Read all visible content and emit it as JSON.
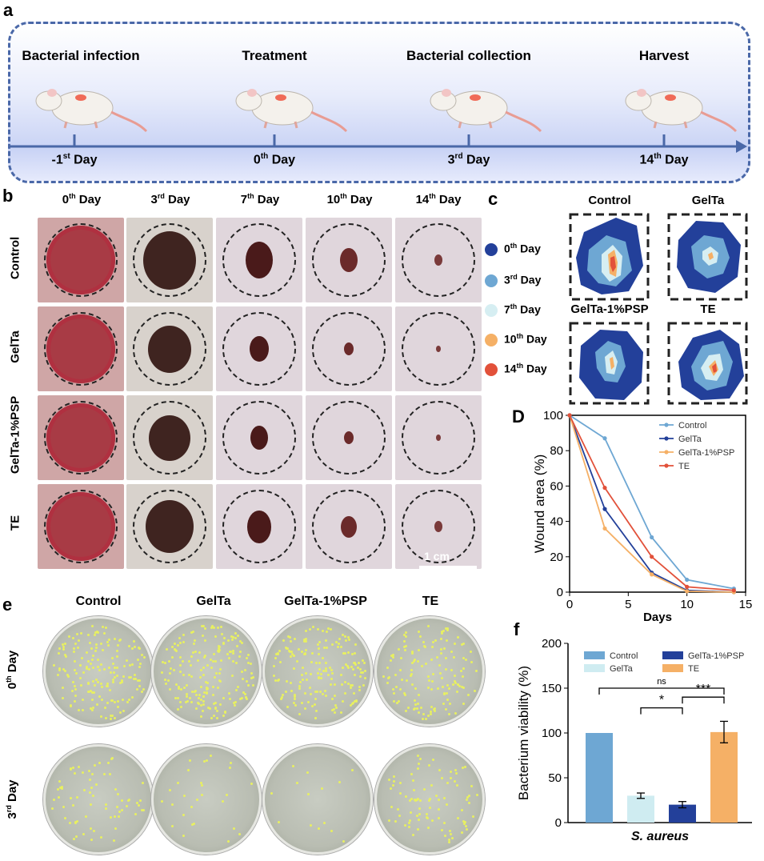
{
  "panels": {
    "a": "a",
    "b": "b",
    "c": "c",
    "d": "D",
    "e": "e",
    "f": "f"
  },
  "timeline": {
    "stages": [
      "Bacterial infection",
      "Treatment",
      "Bacterial collection",
      "Harvest"
    ],
    "days": [
      {
        "pre": "-1",
        "sup": "st",
        "post": " Day"
      },
      {
        "pre": "0",
        "sup": "th",
        "post": " Day"
      },
      {
        "pre": "3",
        "sup": "rd",
        "post": " Day"
      },
      {
        "pre": "14",
        "sup": "th",
        "post": " Day"
      }
    ]
  },
  "wound_photos": {
    "columns": [
      {
        "pre": "0",
        "sup": "th",
        "post": " Day"
      },
      {
        "pre": "3",
        "sup": "rd",
        "post": " Day"
      },
      {
        "pre": "7",
        "sup": "th",
        "post": " Day"
      },
      {
        "pre": "10",
        "sup": "th",
        "post": " Day"
      },
      {
        "pre": "14",
        "sup": "th",
        "post": " Day"
      }
    ],
    "rows": [
      "Control",
      "GelTa",
      "GelTa-1%PSP",
      "TE"
    ],
    "scale_bar": "1 cm"
  },
  "contour": {
    "legend": [
      {
        "pre": "0",
        "sup": "th",
        "post": " Day",
        "color": "#23409a"
      },
      {
        "pre": "3",
        "sup": "rd",
        "post": " Day",
        "color": "#6ea7d3"
      },
      {
        "pre": "7",
        "sup": "th",
        "post": " Day",
        "color": "#d6eef2"
      },
      {
        "pre": "10",
        "sup": "th",
        "post": " Day",
        "color": "#f5b066"
      },
      {
        "pre": "14",
        "sup": "th",
        "post": " Day",
        "color": "#e2513a"
      }
    ],
    "titles": [
      "Control",
      "GelTa",
      "GelTa-1%PSP",
      "TE"
    ]
  },
  "plates": {
    "columns": [
      "Control",
      "GelTa",
      "GelTa-1%PSP",
      "TE"
    ],
    "rows": [
      {
        "pre": "0",
        "sup": "th",
        "post": " Day"
      },
      {
        "pre": "3",
        "sup": "rd",
        "post": " Day"
      }
    ]
  },
  "chart_data": [
    {
      "type": "line",
      "panel": "D",
      "xlabel": "Days",
      "ylabel": "Wound area (%)",
      "xlim": [
        0,
        15
      ],
      "ylim": [
        0,
        100
      ],
      "xticks": [
        0,
        5,
        10,
        15
      ],
      "yticks": [
        0,
        20,
        40,
        60,
        80,
        100
      ],
      "x": [
        0,
        3,
        7,
        10,
        14
      ],
      "series": [
        {
          "name": "Control",
          "color": "#6ea7d3",
          "marker": "circle",
          "values": [
            100,
            87,
            31,
            7,
            2
          ]
        },
        {
          "name": "GelTa",
          "color": "#23409a",
          "marker": "square",
          "values": [
            100,
            47,
            11,
            1,
            0
          ]
        },
        {
          "name": "GelTa-1%PSP",
          "color": "#f5b066",
          "marker": "triangle",
          "values": [
            100,
            36,
            10,
            0.5,
            0
          ]
        },
        {
          "name": "TE",
          "color": "#e2513a",
          "marker": "star",
          "values": [
            100,
            59,
            20,
            3,
            1
          ]
        }
      ]
    },
    {
      "type": "bar",
      "panel": "f",
      "xlabel": "S. aureus",
      "ylabel": "Bacterium viability (%)",
      "ylim": [
        0,
        200
      ],
      "yticks": [
        0,
        50,
        100,
        150,
        200
      ],
      "categories": [
        "Control",
        "GelTa",
        "GelTa-1%PSP",
        "TE"
      ],
      "values": [
        100,
        30,
        20,
        101
      ],
      "errors": [
        0,
        3,
        3.5,
        12
      ],
      "colors": [
        "#6ea7d3",
        "#cfecf1",
        "#23409a",
        "#f5b066"
      ],
      "significance": [
        {
          "from": 0,
          "to": 3,
          "label": "ns"
        },
        {
          "from": 1,
          "to": 2,
          "label": "*"
        },
        {
          "from": 2,
          "to": 3,
          "label": "***"
        }
      ]
    }
  ]
}
